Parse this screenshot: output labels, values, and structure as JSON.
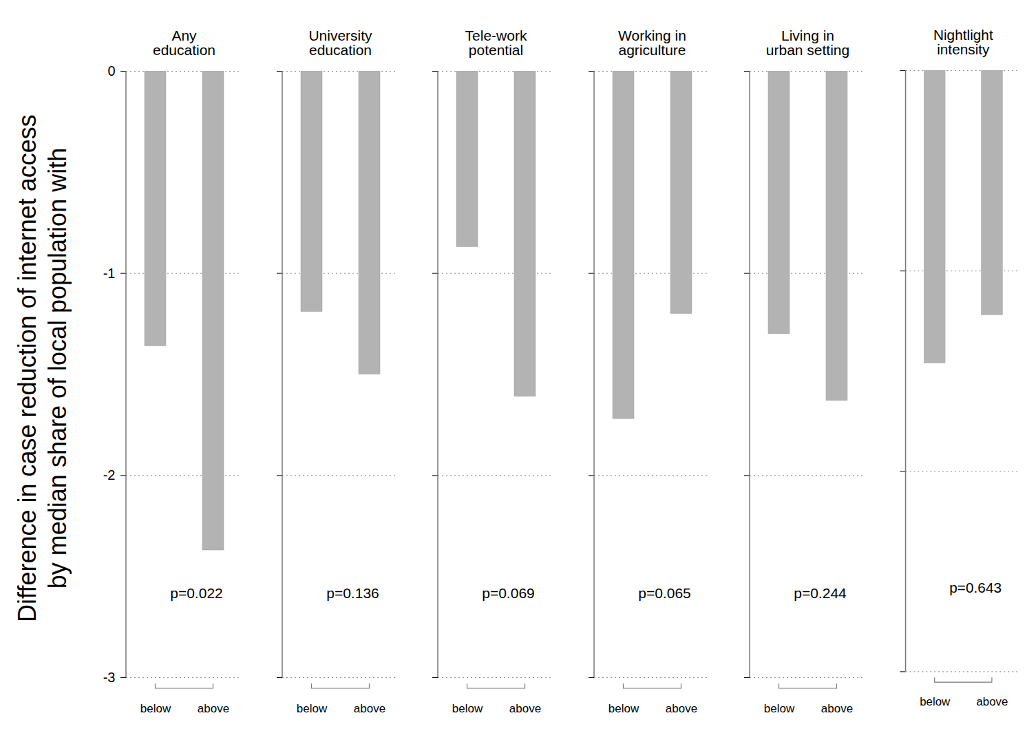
{
  "chart_data": [
    {
      "type": "bar",
      "title": "Any education",
      "y_label": "Difference in case reduction of internet access\nby median share of local population with",
      "categories": [
        "below",
        "above"
      ],
      "values": [
        -1.36,
        -2.37
      ],
      "color": "#b3b3b3",
      "ylim": [
        -3,
        0
      ],
      "yticks": [
        -3,
        -2,
        -1,
        0
      ],
      "grid": true,
      "annotation": "p=0.022"
    },
    {
      "type": "bar",
      "title": "University education",
      "categories": [
        "below",
        "above"
      ],
      "values": [
        -1.19,
        -1.5
      ],
      "color": "#b3b3b3",
      "ylim": [
        -3,
        0
      ],
      "yticks": [
        -3,
        -2,
        -1,
        0
      ],
      "grid": true,
      "tick_labels": "x",
      "annotation": "p=0.136"
    },
    {
      "type": "bar",
      "title": "Tele-work potential",
      "categories": [
        "below",
        "above"
      ],
      "values": [
        -0.87,
        -1.61
      ],
      "color": "#b3b3b3",
      "ylim": [
        -3,
        0
      ],
      "yticks": [
        -3,
        -2,
        -1,
        0
      ],
      "grid": true,
      "tick_labels": "x",
      "annotation": "p=0.069"
    },
    {
      "type": "bar",
      "title": "Working in agriculture",
      "categories": [
        "below",
        "above"
      ],
      "values": [
        -1.72,
        -1.2
      ],
      "color": "#b3b3b3",
      "ylim": [
        -3,
        0
      ],
      "yticks": [
        -3,
        -2,
        -1,
        0
      ],
      "grid": true,
      "tick_labels": "x",
      "annotation": "p=0.065"
    },
    {
      "type": "bar",
      "title": "Living in urban setting",
      "categories": [
        "below",
        "above"
      ],
      "values": [
        -1.3,
        -1.63
      ],
      "color": "#b3b3b3",
      "ylim": [
        -3,
        0
      ],
      "yticks": [
        -3,
        -2,
        -1,
        0
      ],
      "grid": true,
      "tick_labels": "x",
      "annotation": "p=0.244"
    },
    {
      "type": "bar",
      "title": "Nightlight intensity",
      "categories": [
        "below",
        "above"
      ],
      "values": [
        -1.46,
        -1.22
      ],
      "color": "#b3b3b3",
      "ylim": [
        -3,
        0
      ],
      "yticks": [
        -3,
        -2,
        -1,
        0
      ],
      "grid": true,
      "tick_labels": "x",
      "annotation": "p=0.643"
    }
  ]
}
